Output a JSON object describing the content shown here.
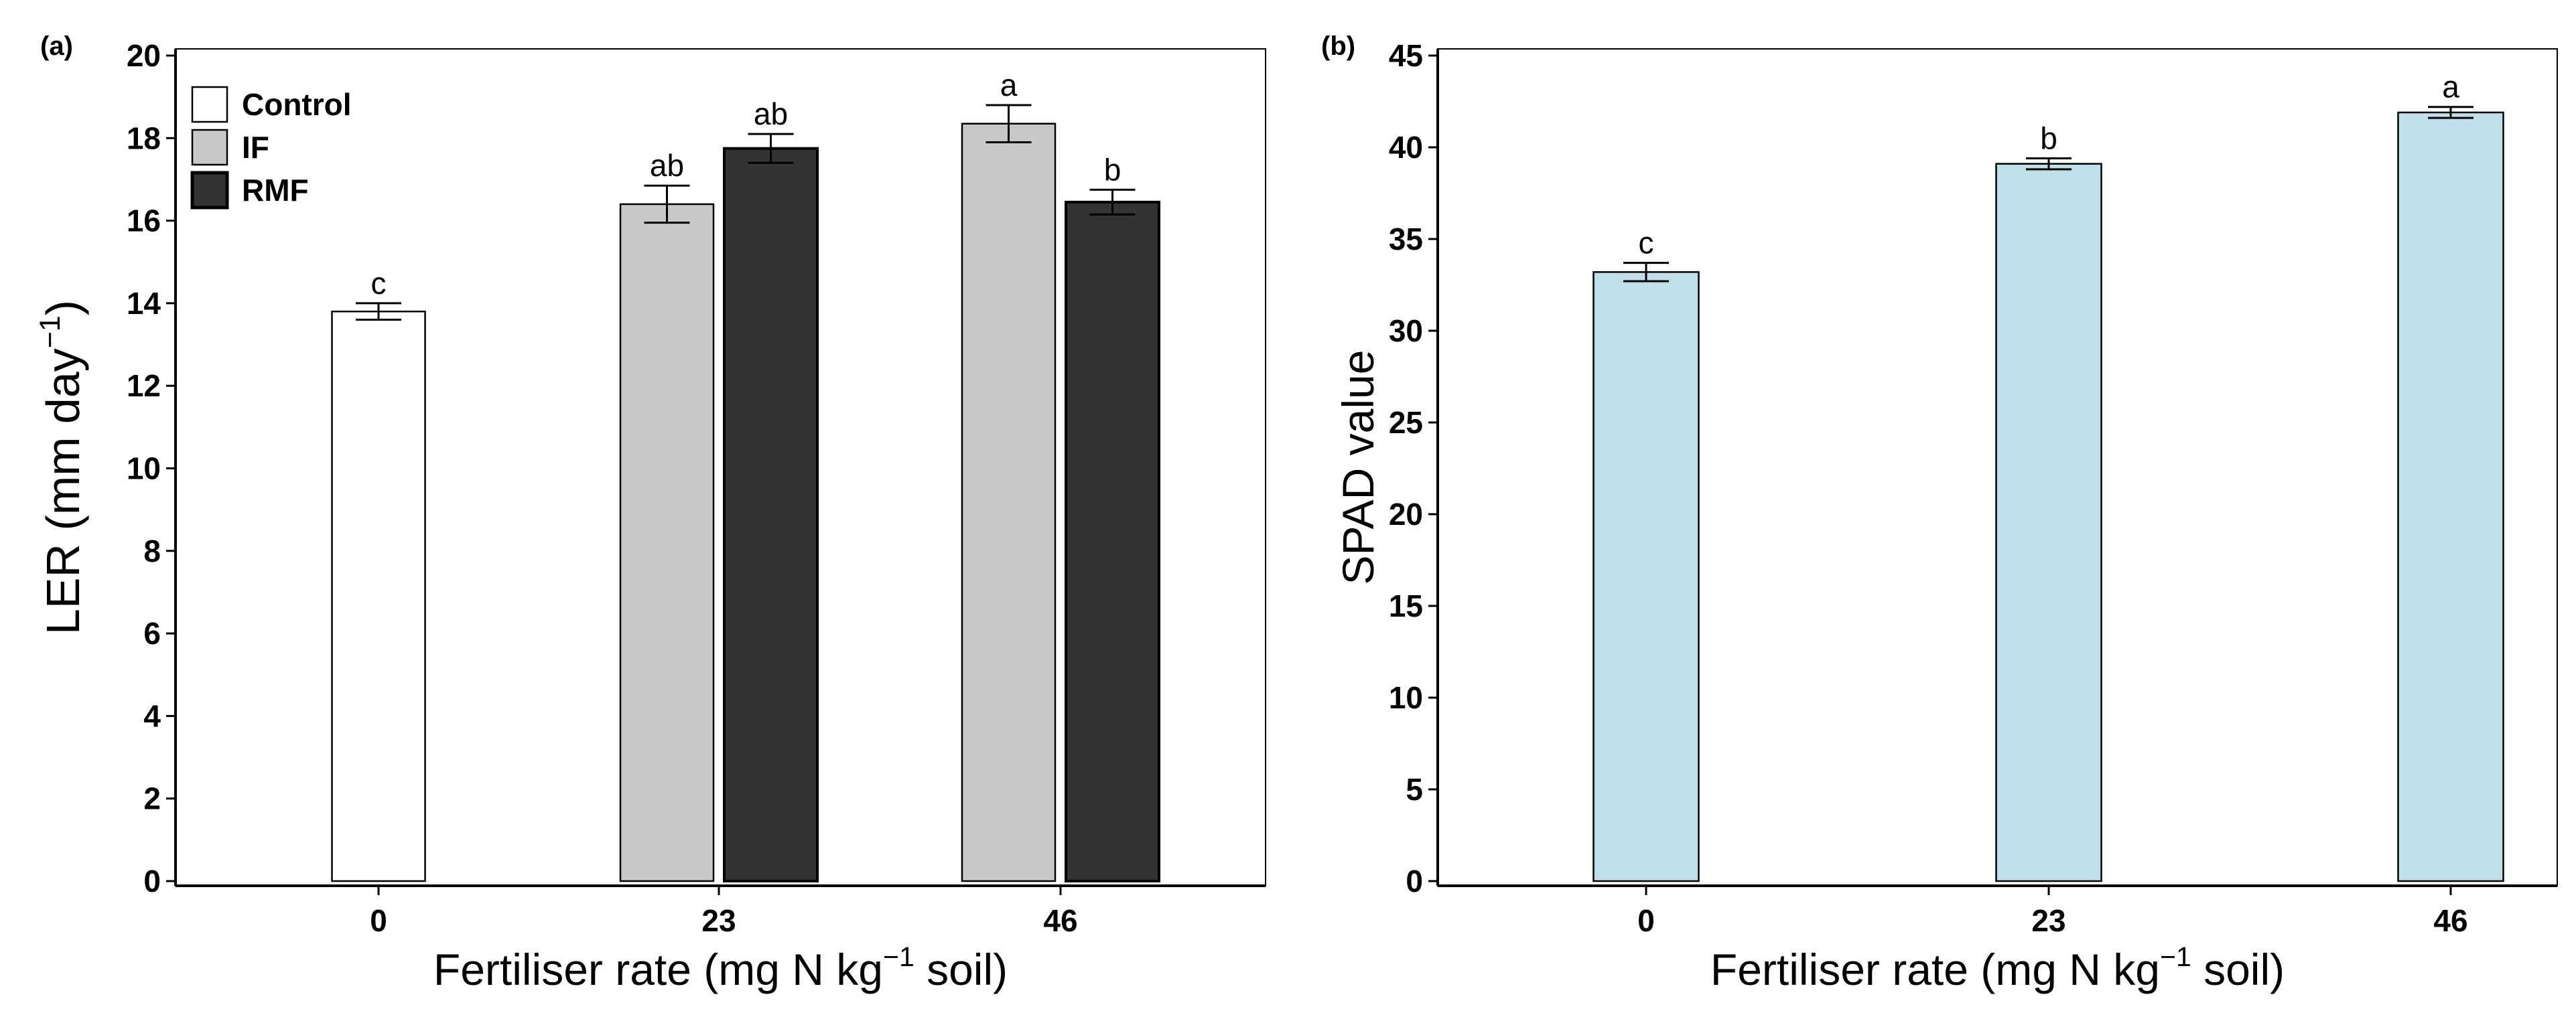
{
  "chart_data": [
    {
      "panel_label": "(a)",
      "type": "bar",
      "xlabel_pre": "Fertiliser rate  (mg N kg",
      "xlabel_sup": "−1",
      "xlabel_post": " soil)",
      "ylabel_pre": "LER  (mm day",
      "ylabel_sup": "−1",
      "ylabel_post": ")",
      "ylim": [
        0,
        20
      ],
      "yticks": [
        "0",
        "2",
        "4",
        "6",
        "8",
        "10",
        "12",
        "14",
        "16",
        "18",
        "20"
      ],
      "categories": [
        "0",
        "23",
        "46"
      ],
      "legend": {
        "placement": "top-left",
        "entries": [
          {
            "name": "Control",
            "color": "#ffffff"
          },
          {
            "name": "IF",
            "color": "#c8c8c8"
          },
          {
            "name": "RMF",
            "color": "#333333"
          }
        ]
      },
      "bars": [
        {
          "category": "0",
          "series": "Control",
          "value": 13.8,
          "error": 0.2,
          "label": "c",
          "color": "#ffffff"
        },
        {
          "category": "23",
          "series": "IF",
          "value": 16.4,
          "error": 0.45,
          "label": "ab",
          "color": "#c8c8c8"
        },
        {
          "category": "23",
          "series": "RMF",
          "value": 17.75,
          "error": 0.35,
          "label": "ab",
          "color": "#333333"
        },
        {
          "category": "46",
          "series": "IF",
          "value": 18.35,
          "error": 0.45,
          "label": "a",
          "color": "#c8c8c8"
        },
        {
          "category": "46",
          "series": "RMF",
          "value": 16.45,
          "error": 0.3,
          "label": "b",
          "color": "#333333"
        }
      ]
    },
    {
      "panel_label": "(b)",
      "type": "bar",
      "xlabel_pre": "Fertiliser rate  (mg N kg",
      "xlabel_sup": "−1",
      "xlabel_post": " soil)",
      "ylabel": "SPAD value",
      "ylim": [
        0,
        45
      ],
      "yticks": [
        "0",
        "5",
        "10",
        "15",
        "20",
        "25",
        "30",
        "35",
        "40",
        "45"
      ],
      "categories": [
        "0",
        "23",
        "46"
      ],
      "bars": [
        {
          "category": "0",
          "value": 33.2,
          "error": 0.5,
          "label": "c",
          "color": "#bfe0ea"
        },
        {
          "category": "23",
          "value": 39.1,
          "error": 0.3,
          "label": "b",
          "color": "#bfe0ea"
        },
        {
          "category": "46",
          "value": 41.9,
          "error": 0.3,
          "label": "a",
          "color": "#bfe0ea"
        }
      ]
    }
  ]
}
